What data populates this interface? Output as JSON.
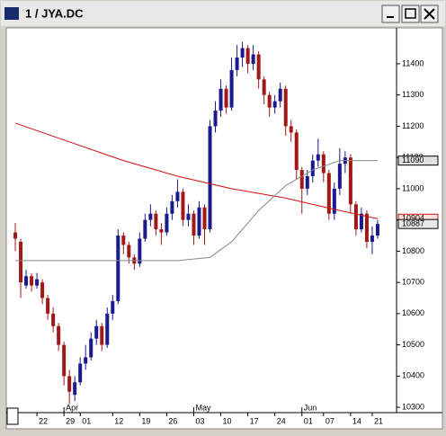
{
  "window_title": "1 / JYA.DC",
  "chart_data": {
    "type": "candlestick",
    "up_color": "#1a1a8c",
    "down_color": "#a01818",
    "xlim": [
      -1.5,
      70.5
    ],
    "ylim": [
      10283,
      11515
    ],
    "yticks": [
      10300,
      10400,
      10500,
      10600,
      10700,
      10800,
      10900,
      11000,
      11100,
      11200,
      11300,
      11400
    ],
    "xticks": [
      {
        "value": 4,
        "label": "22"
      },
      {
        "value": 9,
        "label": "29"
      },
      {
        "value": 12,
        "label": "01"
      },
      {
        "value": 18,
        "label": "12"
      },
      {
        "value": 23,
        "label": "19"
      },
      {
        "value": 28,
        "label": "26"
      },
      {
        "value": 33,
        "label": "03"
      },
      {
        "value": 38,
        "label": "10"
      },
      {
        "value": 43,
        "label": "17"
      },
      {
        "value": 48,
        "label": "24"
      },
      {
        "value": 53,
        "label": "01"
      },
      {
        "value": 57,
        "label": "07"
      },
      {
        "value": 62,
        "label": "14"
      },
      {
        "value": 66,
        "label": "21"
      }
    ],
    "month_ticks": [
      {
        "value": 9,
        "label": "Apr"
      },
      {
        "value": 33,
        "label": "May"
      },
      {
        "value": 53,
        "label": "Jun"
      }
    ],
    "candles": [
      [
        10860,
        10890,
        10800,
        10840
      ],
      [
        10830,
        10840,
        10650,
        10700
      ],
      [
        10690,
        10740,
        10680,
        10720
      ],
      [
        10720,
        10730,
        10670,
        10690
      ],
      [
        10690,
        10730,
        10680,
        10710
      ],
      [
        10700,
        10710,
        10630,
        10650
      ],
      [
        10650,
        10660,
        10580,
        10600
      ],
      [
        10600,
        10620,
        10540,
        10560
      ],
      [
        10560,
        10570,
        10480,
        10500
      ],
      [
        10500,
        10510,
        10370,
        10400
      ],
      [
        10400,
        10420,
        10310,
        10350
      ],
      [
        10340,
        10400,
        10320,
        10380
      ],
      [
        10380,
        10460,
        10370,
        10440
      ],
      [
        10440,
        10500,
        10420,
        10460
      ],
      [
        10460,
        10540,
        10450,
        10520
      ],
      [
        10520,
        10580,
        10500,
        10560
      ],
      [
        10560,
        10570,
        10480,
        10500
      ],
      [
        10500,
        10620,
        10490,
        10600
      ],
      [
        10600,
        10660,
        10580,
        10640
      ],
      [
        10640,
        10870,
        10630,
        10850
      ],
      [
        10850,
        10860,
        10790,
        10820
      ],
      [
        10820,
        10830,
        10760,
        10780
      ],
      [
        10780,
        10790,
        10740,
        10760
      ],
      [
        10760,
        10860,
        10750,
        10840
      ],
      [
        10840,
        10920,
        10830,
        10900
      ],
      [
        10900,
        10950,
        10880,
        10920
      ],
      [
        10920,
        10930,
        10850,
        10870
      ],
      [
        10870,
        10890,
        10820,
        10860
      ],
      [
        10860,
        10940,
        10850,
        10920
      ],
      [
        10920,
        10980,
        10900,
        10960
      ],
      [
        10960,
        11030,
        10940,
        10990
      ],
      [
        10990,
        11000,
        10880,
        10900
      ],
      [
        10900,
        10950,
        10880,
        10920
      ],
      [
        10920,
        10930,
        10820,
        10850
      ],
      [
        10850,
        10960,
        10840,
        10940
      ],
      [
        10940,
        10950,
        10820,
        10870
      ],
      [
        10870,
        11220,
        10860,
        11200
      ],
      [
        11200,
        11280,
        11180,
        11250
      ],
      [
        11250,
        11350,
        11230,
        11320
      ],
      [
        11320,
        11330,
        11240,
        11260
      ],
      [
        11260,
        11420,
        11250,
        11380
      ],
      [
        11380,
        11460,
        11360,
        11420
      ],
      [
        11420,
        11470,
        11390,
        11450
      ],
      [
        11450,
        11460,
        11370,
        11400
      ],
      [
        11400,
        11460,
        11380,
        11430
      ],
      [
        11430,
        11440,
        11320,
        11350
      ],
      [
        11350,
        11360,
        11270,
        11300
      ],
      [
        11300,
        11310,
        11230,
        11260
      ],
      [
        11260,
        11300,
        11240,
        11280
      ],
      [
        11280,
        11340,
        11260,
        11320
      ],
      [
        11320,
        11330,
        11170,
        11200
      ],
      [
        11200,
        11220,
        11150,
        11180
      ],
      [
        11180,
        11190,
        11030,
        11060
      ],
      [
        11060,
        11070,
        10920,
        11000
      ],
      [
        11000,
        11060,
        10980,
        11040
      ],
      [
        11040,
        11110,
        11020,
        11090
      ],
      [
        11090,
        11160,
        11070,
        11110
      ],
      [
        11110,
        11120,
        11020,
        11050
      ],
      [
        11050,
        11060,
        10900,
        10920
      ],
      [
        10920,
        11020,
        10900,
        11000
      ],
      [
        11000,
        11130,
        10980,
        11080
      ],
      [
        11080,
        11120,
        11050,
        11100
      ],
      [
        11100,
        11110,
        10920,
        10950
      ],
      [
        10950,
        10960,
        10850,
        10870
      ],
      [
        10870,
        10940,
        10860,
        10920
      ],
      [
        10920,
        10930,
        10810,
        10830
      ],
      [
        10830,
        10880,
        10790,
        10850
      ],
      [
        10850,
        10900,
        10840,
        10887
      ]
    ],
    "lines": [
      {
        "color": "#d01010",
        "x": [
          0,
          10,
          20,
          30,
          40,
          50,
          60,
          67
        ],
        "values": [
          11210,
          11150,
          11090,
          11040,
          11000,
          10970,
          10930,
          10904
        ]
      },
      {
        "color": "#888888",
        "x": [
          0,
          10,
          20,
          30,
          36,
          40,
          45,
          50,
          55,
          60,
          67
        ],
        "values": [
          10770,
          10770,
          10770,
          10770,
          10780,
          10830,
          10930,
          11010,
          11060,
          11090,
          11090
        ]
      }
    ]
  }
}
